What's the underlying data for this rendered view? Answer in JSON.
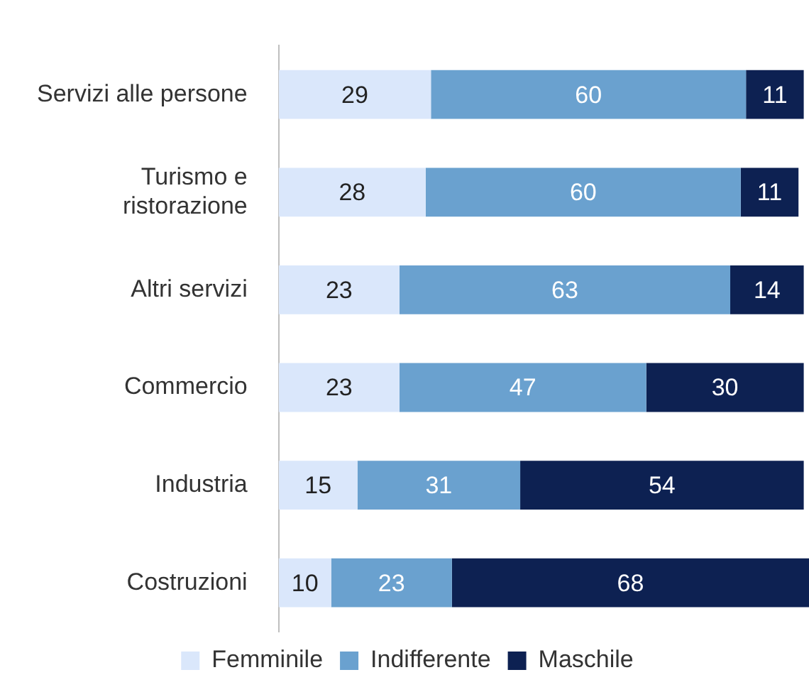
{
  "chart_data": {
    "type": "bar",
    "orientation": "horizontal",
    "stacked": true,
    "data_labels": true,
    "legend": "bottom",
    "xlim": [
      0,
      101
    ],
    "categories": [
      "Servizi alle persone",
      "Turismo e\nristorazione",
      "Altri servizi",
      "Commercio",
      "Industria",
      "Costruzioni"
    ],
    "series": [
      {
        "name": "Femminile",
        "color": "#dae7fb",
        "values": [
          29,
          28,
          23,
          23,
          15,
          10
        ]
      },
      {
        "name": "Indifferente",
        "color": "#6aa1cf",
        "values": [
          60,
          60,
          63,
          47,
          31,
          23
        ]
      },
      {
        "name": "Maschile",
        "color": "#0d2152",
        "values": [
          11,
          11,
          14,
          30,
          54,
          68
        ]
      }
    ]
  }
}
